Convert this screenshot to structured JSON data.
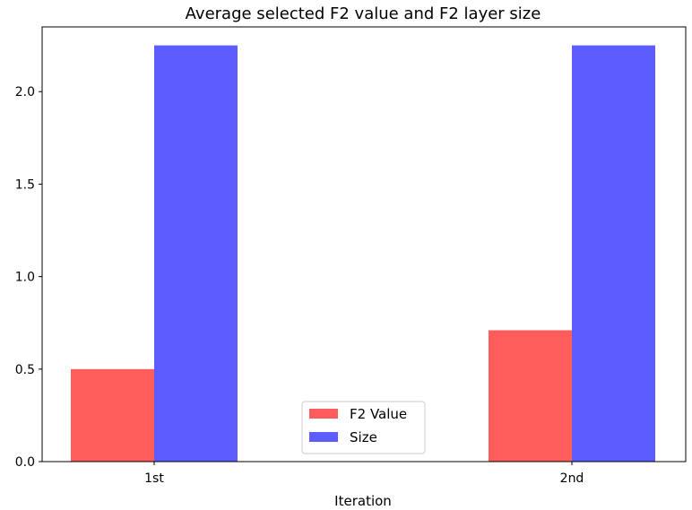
{
  "chart_data": {
    "type": "bar",
    "title": "Average selected F2 value and F2 layer size",
    "xlabel": "Iteration",
    "ylabel": "",
    "categories": [
      "1st",
      "2nd"
    ],
    "series": [
      {
        "name": "F2 Value",
        "values": [
          0.5,
          0.71
        ],
        "color": "#ff3333"
      },
      {
        "name": "Size",
        "values": [
          2.25,
          2.25
        ],
        "color": "#3333ff"
      }
    ],
    "ylim": [
      0,
      2.35
    ],
    "yticks": [
      0.0,
      0.5,
      1.0,
      1.5,
      2.0
    ],
    "ytick_labels": [
      "0.0",
      "0.5",
      "1.0",
      "1.5",
      "2.0"
    ],
    "grid": false,
    "legend_position": "lower center"
  }
}
